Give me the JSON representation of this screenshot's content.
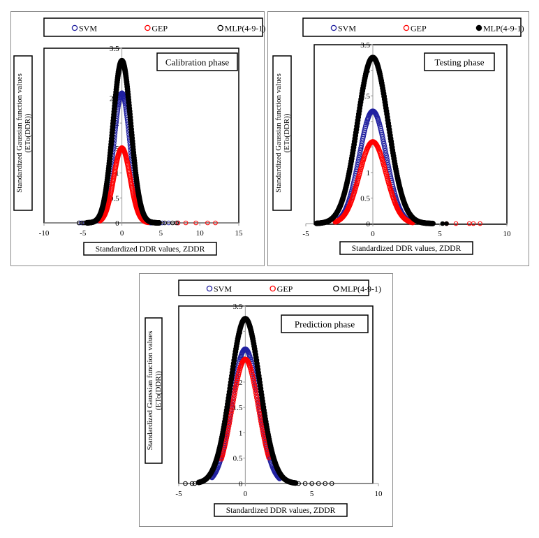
{
  "chart_data": [
    {
      "type": "scatter",
      "title": "Calibration phase",
      "xlabel": "Standardized DDR values, ZDDR",
      "ylabel": "Standardized Gaussian function values",
      "ylabel2": "(ETo(DDR))",
      "xlim": [
        -10,
        15
      ],
      "ylim": [
        0,
        3.5
      ],
      "xticks": [
        -10,
        -5,
        0,
        5,
        10,
        15
      ],
      "xtick_labels": [
        "-10",
        "-5",
        "0",
        "5",
        "10",
        "15"
      ],
      "yticks": [
        0,
        0.5,
        1,
        1.5,
        2,
        2.5,
        3,
        3.5
      ],
      "ytick_labels": [
        "0",
        "0.5",
        "1",
        "1.5",
        "2",
        "2.5",
        "3",
        "3.5"
      ],
      "legend": "top",
      "series": [
        {
          "name": "SVM",
          "color": "#2020a0",
          "marker": "open-circle",
          "peak": 2.6,
          "sigma": 1.05,
          "xmin": -3,
          "xmax": 3.8,
          "tail": [
            -5.5,
            -5.2,
            -4.8,
            5.2,
            6.0,
            7.2
          ]
        },
        {
          "name": "GEP",
          "color": "#ff0000",
          "marker": "open-circle",
          "peak": 1.5,
          "sigma": 1.05,
          "xmin": -2.8,
          "xmax": 3.4,
          "tail": [
            7.2,
            8.2,
            9.5,
            11,
            12
          ]
        },
        {
          "name": "MLP(4-9-1)",
          "color": "#000000",
          "marker": "open-circle",
          "peak": 3.25,
          "sigma": 1.15,
          "xmin": -4.5,
          "xmax": 4.8,
          "tail": [
            -5.5,
            -5,
            -4.8,
            5.5,
            6.5,
            7
          ]
        }
      ]
    },
    {
      "type": "scatter",
      "title": "Testing phase",
      "xlabel": "Standardized DDR values, ZDDR",
      "ylabel": "Standardized Gaussian function values",
      "ylabel2": "(ETo(DDR))",
      "xlim": [
        -5,
        10
      ],
      "ylim": [
        0,
        3.5
      ],
      "xticks": [
        -5,
        0,
        5,
        10
      ],
      "xtick_labels": [
        "-5",
        "0",
        "5",
        "10"
      ],
      "yticks": [
        0,
        0.5,
        1,
        1.5,
        2,
        2.5,
        3,
        3.5
      ],
      "ytick_labels": [
        "0",
        "0.5",
        "1",
        "1.5",
        "2",
        "2.5",
        "3",
        "3.5"
      ],
      "legend": "top",
      "series": [
        {
          "name": "SVM",
          "color": "#2020a0",
          "marker": "open-circle",
          "peak": 2.2,
          "sigma": 1.0,
          "xmin": -2.5,
          "xmax": 2.8,
          "tail": []
        },
        {
          "name": "GEP",
          "color": "#ff0000",
          "marker": "open-circle",
          "peak": 1.6,
          "sigma": 1.0,
          "xmin": -2.8,
          "xmax": 3.0,
          "tail": [
            5.5,
            6.2,
            7.2,
            7.5,
            8.0
          ]
        },
        {
          "name": "MLP(4-9-1)",
          "color": "#000000",
          "marker": "filled-circle",
          "peak": 3.25,
          "sigma": 1.15,
          "xmin": -4.2,
          "xmax": 4.5,
          "tail": [
            5.2,
            5.5
          ]
        }
      ]
    },
    {
      "type": "scatter",
      "title": "Prediction phase",
      "xlabel": "Standardized DDR values, ZDDR",
      "ylabel": "Standardized Gaussian function values",
      "ylabel2": "(ETo(DDR))",
      "xlim": [
        -5,
        10
      ],
      "ylim": [
        0,
        3.5
      ],
      "xticks": [
        -5,
        0,
        5,
        10
      ],
      "xtick_labels": [
        "-5",
        "0",
        "5",
        "10"
      ],
      "yticks": [
        0,
        0.5,
        1,
        1.5,
        2,
        2.5,
        3,
        3.5
      ],
      "ytick_labels": [
        "0",
        "0.5",
        "1",
        "1.5",
        "2",
        "2.5",
        "3",
        "3.5"
      ],
      "legend": "top",
      "series": [
        {
          "name": "SVM",
          "color": "#2020a0",
          "marker": "open-circle",
          "peak": 2.65,
          "sigma": 1.0,
          "xmin": -2.5,
          "xmax": 2.6,
          "tail": []
        },
        {
          "name": "GEP",
          "color": "#ff0000",
          "marker": "open-circle",
          "peak": 2.45,
          "sigma": 1.0,
          "xmin": -1.8,
          "xmax": 1.8,
          "tail": []
        },
        {
          "name": "MLP(4-9-1)",
          "color": "#000000",
          "marker": "open-circle",
          "peak": 3.25,
          "sigma": 1.1,
          "xmin": -3.5,
          "xmax": 3.8,
          "tail": [
            -4.5,
            -4.0,
            -3.8,
            4.0,
            4.5,
            5.0,
            5.5,
            6.0,
            6.5
          ]
        }
      ]
    }
  ]
}
